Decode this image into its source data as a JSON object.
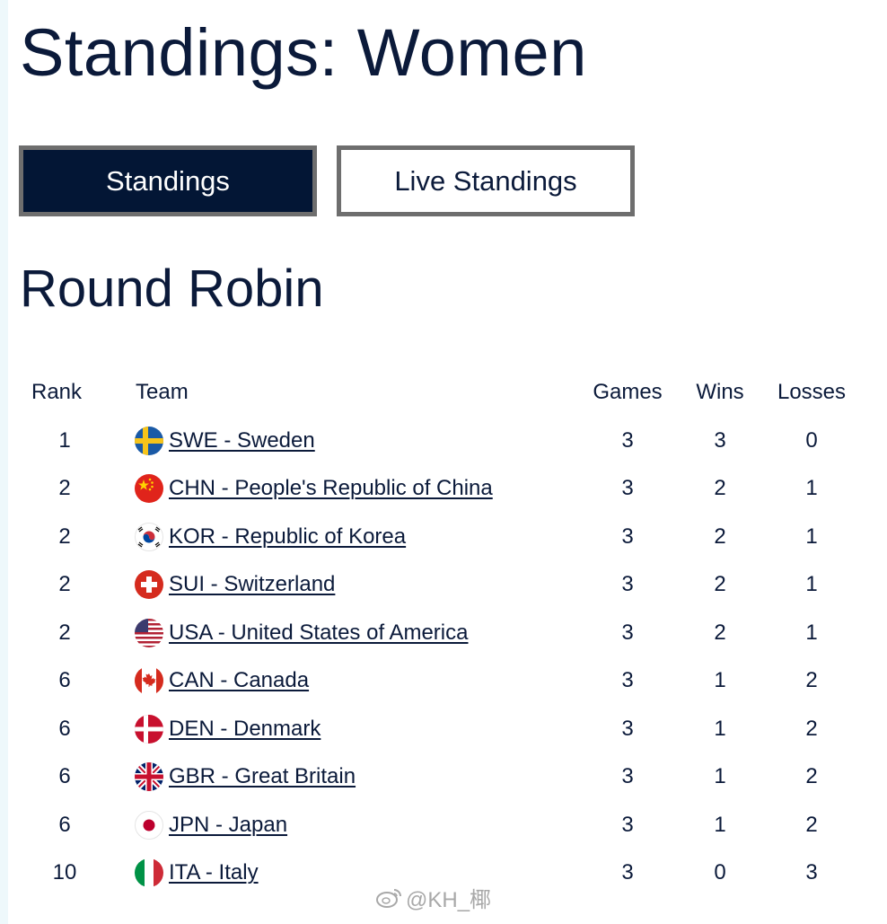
{
  "page": {
    "title": "Standings: Women"
  },
  "tabs": [
    {
      "label": "Standings",
      "active": true
    },
    {
      "label": "Live Standings",
      "active": false
    }
  ],
  "section": {
    "title": "Round Robin"
  },
  "table": {
    "headers": {
      "rank": "Rank",
      "team": "Team",
      "games": "Games",
      "wins": "Wins",
      "losses": "Losses"
    },
    "rows": [
      {
        "rank": "1",
        "team": "SWE - Sweden",
        "flag": "sweden-flag-icon",
        "games": "3",
        "wins": "3",
        "losses": "0"
      },
      {
        "rank": "2",
        "team": "CHN - People's Republic of China",
        "flag": "china-flag-icon",
        "games": "3",
        "wins": "2",
        "losses": "1"
      },
      {
        "rank": "2",
        "team": "KOR - Republic of Korea",
        "flag": "korea-flag-icon",
        "games": "3",
        "wins": "2",
        "losses": "1"
      },
      {
        "rank": "2",
        "team": "SUI - Switzerland",
        "flag": "switzerland-flag-icon",
        "games": "3",
        "wins": "2",
        "losses": "1"
      },
      {
        "rank": "2",
        "team": "USA - United States of America",
        "flag": "usa-flag-icon",
        "games": "3",
        "wins": "2",
        "losses": "1"
      },
      {
        "rank": "6",
        "team": "CAN - Canada",
        "flag": "canada-flag-icon",
        "games": "3",
        "wins": "1",
        "losses": "2"
      },
      {
        "rank": "6",
        "team": "DEN - Denmark",
        "flag": "denmark-flag-icon",
        "games": "3",
        "wins": "1",
        "losses": "2"
      },
      {
        "rank": "6",
        "team": "GBR - Great Britain",
        "flag": "great-britain-flag-icon",
        "games": "3",
        "wins": "1",
        "losses": "2"
      },
      {
        "rank": "6",
        "team": "JPN - Japan",
        "flag": "japan-flag-icon",
        "games": "3",
        "wins": "1",
        "losses": "2"
      },
      {
        "rank": "10",
        "team": "ITA - Italy",
        "flag": "italy-flag-icon",
        "games": "3",
        "wins": "0",
        "losses": "3"
      }
    ]
  },
  "watermark": {
    "text": "@KH_椰"
  },
  "colors": {
    "navy": "#031635",
    "text": "#0b1a3a",
    "tab_border": "#6e6e6e"
  }
}
